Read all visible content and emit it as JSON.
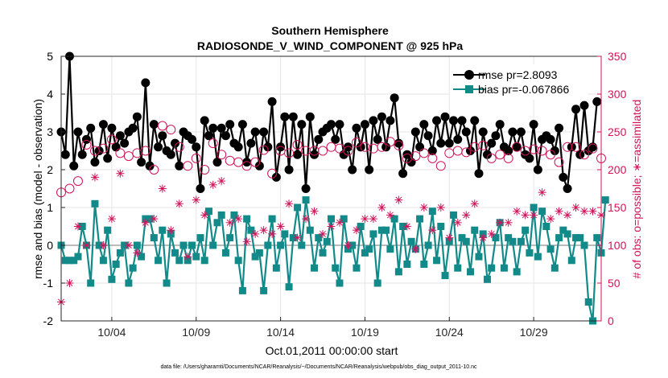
{
  "chart_data": {
    "type": "line",
    "title": "Southern Hemisphere",
    "subtitle": "RADIOSONDE_V_WIND_COMPONENT @ 925 hPa",
    "xlabel": "Oct.01,2011 00:00:00 start",
    "ylabel_left": "rmse and bias (model - observation)",
    "ylabel_right": "# of obs: o=possible; ∗=assimilated",
    "xlim": [
      0.5,
      32.5
    ],
    "ylim_left": [
      -2,
      5
    ],
    "ylim_right": [
      0,
      350
    ],
    "x_ticks": [
      3.5,
      8.5,
      13.5,
      18.5,
      23.5,
      28.5
    ],
    "x_tick_labels": [
      "10/04",
      "10/09",
      "10/14",
      "10/19",
      "10/24",
      "10/29"
    ],
    "y_ticks_left": [
      -2,
      -1,
      0,
      1,
      2,
      3,
      4,
      5
    ],
    "y_tick_labels_left": [
      "-2",
      "-1",
      "0",
      "1",
      "2",
      "3",
      "4",
      "5"
    ],
    "y_ticks_right": [
      0,
      50,
      100,
      150,
      200,
      250,
      300,
      350
    ],
    "y_tick_labels_right": [
      "0",
      "50",
      "100",
      "150",
      "200",
      "250",
      "300",
      "350"
    ],
    "footnote": "data file: /Users/gharamti/Documents/NCAR/Reanalysis/~/Documents/NCAR/Reanalysis/webpub/obs_diag_output_2011-10.nc",
    "colors": {
      "rmse": "#000000",
      "bias": "#138a8a",
      "obs": "#d1135a",
      "zero_line": "#bbbbbb"
    },
    "legend": {
      "placement": "top-right",
      "entries": [
        "rmse pr=2.8093",
        "bias pr=-0.067866"
      ]
    },
    "series": [
      {
        "name": "rmse pr=2.8093",
        "axis": "left",
        "x_start": 0.5,
        "x_step": 0.25,
        "values": [
          3.0,
          2.4,
          5.0,
          2.1,
          3.0,
          2.4,
          2.8,
          3.1,
          2.2,
          2.5,
          3.2,
          2.3,
          3.1,
          2.6,
          2.9,
          2.7,
          3.0,
          3.1,
          3.4,
          2.2,
          4.3,
          2.1,
          3.2,
          2.6,
          2.9,
          2.5,
          2.4,
          2.7,
          2.1,
          3.0,
          2.9,
          2.8,
          2.6,
          1.5,
          3.3,
          2.9,
          3.1,
          2.2,
          3.1,
          2.9,
          3.2,
          2.7,
          2.6,
          3.2,
          2.2,
          2.7,
          3.0,
          2.1,
          3.0,
          2.6,
          3.8,
          1.8,
          2.6,
          3.4,
          2.0,
          3.4,
          2.4,
          3.2,
          1.5,
          3.4,
          2.4,
          2.8,
          3.0,
          3.1,
          3.2,
          2.8,
          3.2,
          2.4,
          2.6,
          2.0,
          3.1,
          2.6,
          3.2,
          2.0,
          3.3,
          2.8,
          3.4,
          2.6,
          3.3,
          3.9,
          2.7,
          1.9,
          2.4,
          2.2,
          3.0,
          2.6,
          3.2,
          2.9,
          2.5,
          3.3,
          2.7,
          3.4,
          2.7,
          3.3,
          2.8,
          3.3,
          3.0,
          2.5,
          3.3,
          1.9,
          3.0,
          2.4,
          2.7,
          2.9,
          3.2,
          2.6,
          2.5,
          3.0,
          2.6,
          3.0,
          2.4,
          2.3,
          3.2,
          2.0,
          2.8,
          2.9,
          2.8,
          2.5,
          3.1,
          1.8,
          1.5,
          2.6,
          3.6,
          2.4,
          3.7,
          2.5,
          2.6,
          3.8
        ]
      },
      {
        "name": "bias pr=-0.067866",
        "axis": "left",
        "x_start": 0.5,
        "x_step": 0.25,
        "values": [
          0.0,
          -0.4,
          -0.4,
          -0.4,
          -0.3,
          0.5,
          0.0,
          -1.0,
          1.1,
          0.0,
          -0.4,
          0.4,
          -0.9,
          -0.5,
          -0.2,
          0.0,
          -1.0,
          -0.6,
          0.0,
          -0.3,
          0.7,
          0.7,
          0.2,
          -0.4,
          0.4,
          -1.0,
          0.3,
          -0.2,
          -0.4,
          0.0,
          -0.4,
          0.0,
          -0.3,
          0.2,
          -0.4,
          0.9,
          0.0,
          0.6,
          0.8,
          -0.2,
          0.2,
          0.8,
          -0.4,
          -1.2,
          0.7,
          0.4,
          -0.3,
          -0.2,
          -1.2,
          0.0,
          0.7,
          -0.6,
          0.0,
          0.3,
          -1.1,
          0.2,
          1.0,
          0.0,
          1.2,
          0.4,
          -0.6,
          0.2,
          -0.2,
          0.1,
          0.7,
          -0.6,
          -1.0,
          0.7,
          -0.1,
          0.0,
          -0.6,
          0.5,
          -0.2,
          -0.1,
          0.3,
          -1.0,
          0.4,
          0.4,
          -0.1,
          0.7,
          -0.7,
          0.5,
          -0.5,
          0.1,
          -0.1,
          0.7,
          -0.5,
          0.0,
          0.9,
          -0.4,
          0.5,
          -0.8,
          0.1,
          0.8,
          -0.6,
          0.2,
          0.1,
          -0.7,
          0.4,
          -0.3,
          0.3,
          -0.9,
          -0.6,
          0.2,
          0.6,
          -0.6,
          0.2,
          0.1,
          -0.7,
          0.1,
          0.4,
          -0.2,
          1.0,
          -0.3,
          0.9,
          0.5,
          -0.1,
          -0.6,
          0.2,
          0.4,
          0.3,
          -0.4,
          0.2,
          0.2,
          0.0,
          -1.5,
          -2.0,
          0.2,
          -0.2,
          1.2
        ]
      },
      {
        "name": "possible",
        "axis": "right",
        "x_start": 0.5,
        "x_step": 0.5,
        "values": [
          170,
          175,
          185,
          233,
          225,
          228,
          240,
          222,
          218,
          222,
          225,
          200,
          258,
          253,
          230,
          205,
          215,
          200,
          235,
          220,
          212,
          210,
          205,
          210,
          226,
          195,
          225,
          222,
          233,
          225,
          225,
          225,
          230,
          228,
          225,
          236,
          230,
          228,
          230,
          237,
          232,
          215,
          218,
          222,
          215,
          205,
          222,
          225,
          223,
          230,
          232,
          215,
          220,
          215,
          230,
          225,
          227,
          225,
          220,
          210,
          230,
          230,
          220,
          228,
          215
        ]
      },
      {
        "name": "assimilated",
        "axis": "right",
        "x_start": 0.5,
        "x_step": 0.5,
        "values": [
          25,
          50,
          125,
          100,
          190,
          100,
          135,
          195,
          100,
          90,
          130,
          135,
          175,
          120,
          155,
          85,
          160,
          140,
          180,
          185,
          130,
          135,
          105,
          115,
          120,
          115,
          125,
          155,
          110,
          135,
          145,
          115,
          125,
          130,
          100,
          120,
          135,
          135,
          150,
          140,
          160,
          125,
          95,
          150,
          120,
          150,
          110,
          130,
          140,
          155,
          110,
          115,
          130,
          130,
          145,
          140,
          140,
          170,
          135,
          145,
          140,
          150,
          145,
          145,
          140
        ]
      }
    ]
  }
}
